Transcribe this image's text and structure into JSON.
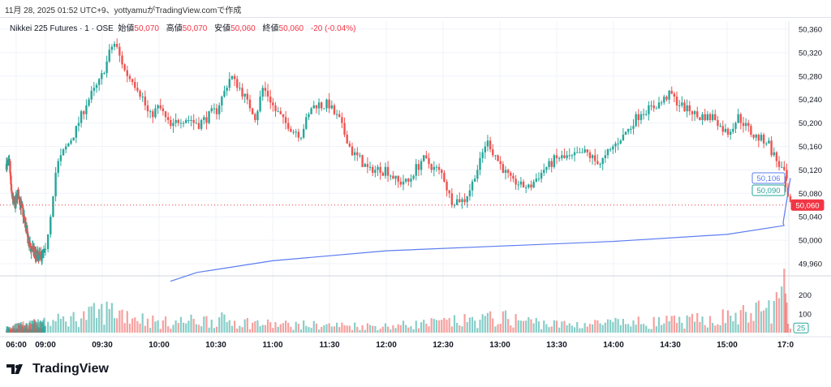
{
  "caption": "11月 28, 2025 01:52 UTC+9、yottyamuがTradingView.comで作成",
  "legend": {
    "symbol": "Nikkei 225 Futures · 1 · OSE",
    "open_label": "始値",
    "open": "50,070",
    "high_label": "高値",
    "high": "50,070",
    "low_label": "安値",
    "low": "50,060",
    "close_label": "終値",
    "close": "50,060",
    "change": "-20 (-0.04%)"
  },
  "brand": "TradingView",
  "colors": {
    "up": "#26a69a",
    "down": "#ef5350",
    "vwap": "#5b7cf0",
    "last": "#f23645"
  },
  "chart_data": {
    "type": "candlestick",
    "ylim": [
      49940,
      50380
    ],
    "y_ticks": [
      "50,360",
      "50,320",
      "50,280",
      "50,240",
      "50,200",
      "50,160",
      "50,120",
      "50,080",
      "50,040",
      "50,000",
      "49,960"
    ],
    "y_tick_values": [
      50360,
      50320,
      50280,
      50240,
      50200,
      50160,
      50120,
      50080,
      50040,
      50000,
      49960
    ],
    "x_ticks": [
      "06:00",
      "09:00",
      "09:30",
      "10:00",
      "10:30",
      "11:00",
      "11:30",
      "12:00",
      "12:30",
      "13:00",
      "13:30",
      "14:00",
      "14:30",
      "15:00",
      "17:0"
    ],
    "x_tick_minutes": [
      360,
      540,
      570,
      600,
      630,
      660,
      690,
      720,
      750,
      780,
      810,
      840,
      870,
      900,
      1020
    ],
    "price_anchors": [
      [
        300,
        50130
      ],
      [
        320,
        50130
      ],
      [
        330,
        50080
      ],
      [
        350,
        50060
      ],
      [
        370,
        50080
      ],
      [
        400,
        50050
      ],
      [
        440,
        49990
      ],
      [
        500,
        49970
      ],
      [
        540,
        49980
      ],
      [
        546,
        50130
      ],
      [
        555,
        50180
      ],
      [
        561,
        50230
      ],
      [
        570,
        50280
      ],
      [
        576,
        50340
      ],
      [
        582,
        50290
      ],
      [
        589,
        50260
      ],
      [
        595,
        50210
      ],
      [
        600,
        50230
      ],
      [
        606,
        50190
      ],
      [
        612,
        50210
      ],
      [
        621,
        50200
      ],
      [
        630,
        50220
      ],
      [
        638,
        50280
      ],
      [
        644,
        50250
      ],
      [
        651,
        50210
      ],
      [
        655,
        50260
      ],
      [
        660,
        50230
      ],
      [
        666,
        50200
      ],
      [
        675,
        50180
      ],
      [
        681,
        50230
      ],
      [
        690,
        50230
      ],
      [
        696,
        50200
      ],
      [
        702,
        50150
      ],
      [
        711,
        50120
      ],
      [
        720,
        50120
      ],
      [
        726,
        50100
      ],
      [
        732,
        50100
      ],
      [
        739,
        50140
      ],
      [
        750,
        50110
      ],
      [
        754,
        50070
      ],
      [
        762,
        50070
      ],
      [
        769,
        50130
      ],
      [
        773,
        50170
      ],
      [
        780,
        50130
      ],
      [
        786,
        50100
      ],
      [
        795,
        50090
      ],
      [
        803,
        50120
      ],
      [
        810,
        50140
      ],
      [
        816,
        50140
      ],
      [
        825,
        50150
      ],
      [
        833,
        50130
      ],
      [
        840,
        50160
      ],
      [
        848,
        50190
      ],
      [
        855,
        50220
      ],
      [
        863,
        50230
      ],
      [
        870,
        50250
      ],
      [
        876,
        50230
      ],
      [
        885,
        50210
      ],
      [
        893,
        50210
      ],
      [
        900,
        50180
      ],
      [
        906,
        50210
      ],
      [
        913,
        50180
      ],
      [
        921,
        50170
      ],
      [
        927,
        50130
      ],
      [
        932,
        50100
      ],
      [
        1020,
        50080
      ],
      [
        1022,
        50060
      ]
    ],
    "vwap": [
      [
        606,
        49930
      ],
      [
        620,
        49945
      ],
      [
        660,
        49965
      ],
      [
        720,
        49982
      ],
      [
        780,
        49990
      ],
      [
        840,
        49998
      ],
      [
        900,
        50010
      ],
      [
        930,
        50025
      ],
      [
        1019,
        50030
      ],
      [
        1022,
        50106
      ]
    ],
    "volume_ylim": [
      0,
      280
    ],
    "volume_ticks": [
      "200",
      "100"
    ],
    "volume_tick_values": [
      200,
      100
    ],
    "volume_anchors": [
      [
        300,
        30
      ],
      [
        540,
        60
      ],
      [
        560,
        100
      ],
      [
        575,
        140
      ],
      [
        600,
        60
      ],
      [
        630,
        80
      ],
      [
        660,
        50
      ],
      [
        720,
        40
      ],
      [
        760,
        70
      ],
      [
        780,
        90
      ],
      [
        810,
        50
      ],
      [
        850,
        60
      ],
      [
        880,
        70
      ],
      [
        910,
        110
      ],
      [
        925,
        160
      ],
      [
        930,
        250
      ],
      [
        1020,
        150
      ],
      [
        1022,
        25
      ]
    ],
    "labels": {
      "vwap": "50,106",
      "prev": "50,090",
      "last": "50,060",
      "volume": "25"
    }
  }
}
